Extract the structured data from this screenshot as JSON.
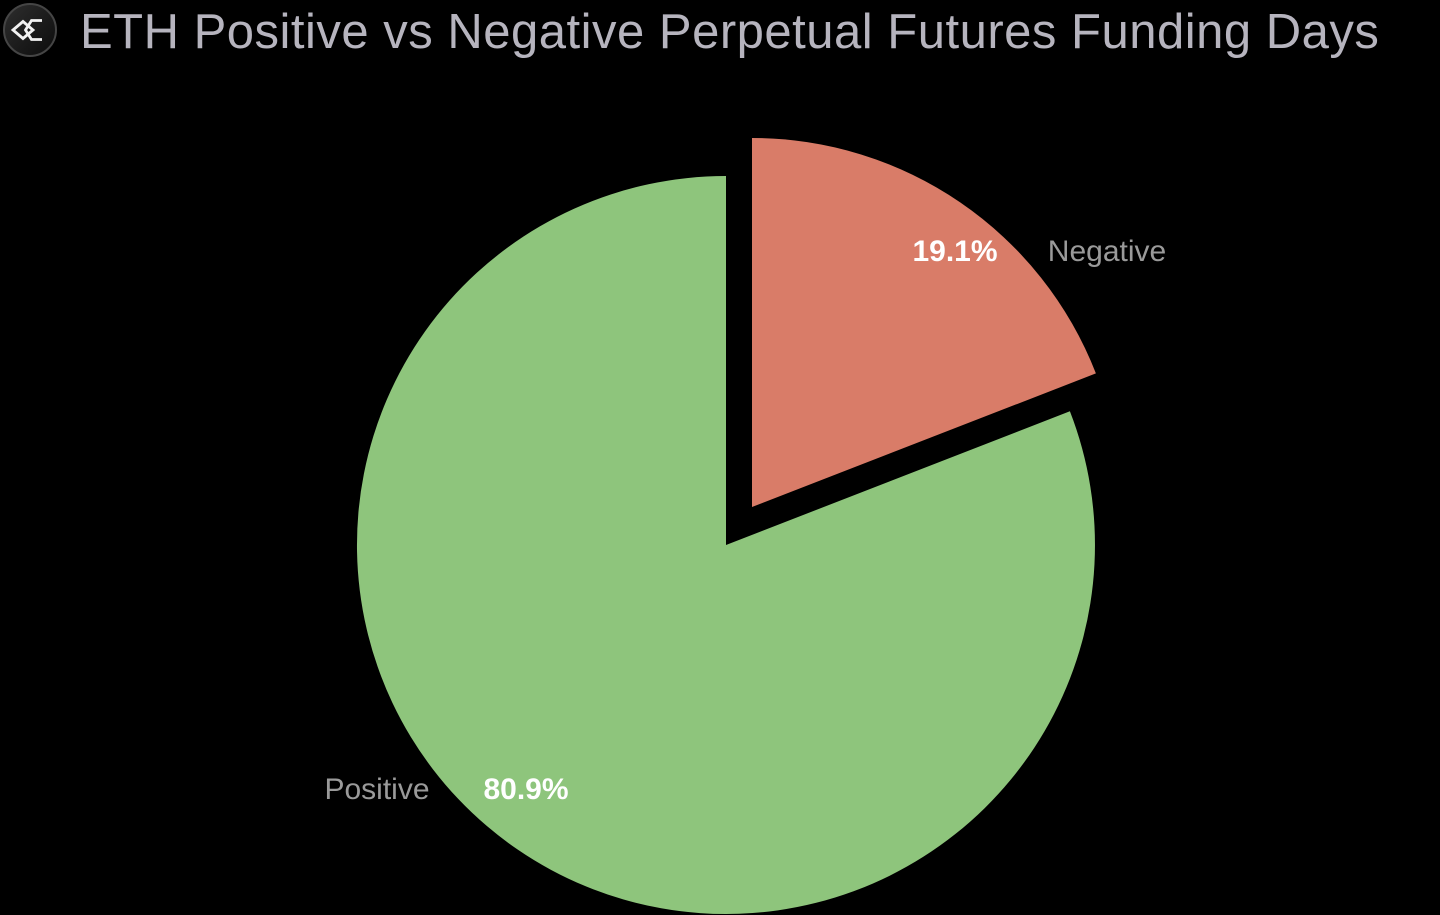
{
  "header": {
    "title": "ETH Positive vs Negative Perpetual Futures Funding Days",
    "logo_icon": "sigma-diamond-logo"
  },
  "chart_data": {
    "type": "pie",
    "title": "ETH Positive vs Negative Perpetual Futures Funding Days",
    "slices": [
      {
        "label": "Negative",
        "value": 19.1,
        "pct_label": "19.1%",
        "color": "#D97C68",
        "exploded": true
      },
      {
        "label": "Positive",
        "value": 80.9,
        "pct_label": "80.9%",
        "color": "#8EC57C",
        "exploded": false
      }
    ],
    "start_angle": "12-oclock",
    "direction": "clockwise",
    "legend_position": "none",
    "background_color": "#000000",
    "pct_label_color": "#FFFFFF",
    "category_label_color": "#9A9A9A",
    "title_color": "#B6B4BE"
  }
}
